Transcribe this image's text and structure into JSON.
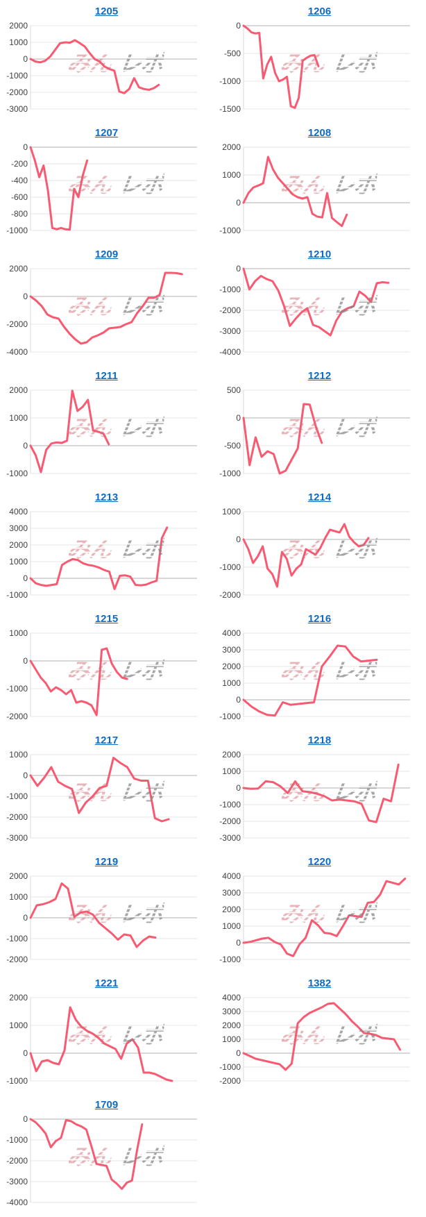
{
  "page": {
    "background": "#ffffff"
  },
  "watermark": {
    "pink": "みん",
    "gray": "レポ"
  },
  "style": {
    "line_color": "#f85a72",
    "link_color": "#0e6bc5",
    "grid_color": "#e6e6e6",
    "zero_color": "#b0b0b0",
    "axis_color": "#d9d9d9",
    "label_color": "#404040"
  },
  "chart_data": [
    {
      "title": "1205",
      "type": "line",
      "ylim": [
        -3000,
        2000
      ],
      "yticks": [
        2000,
        1000,
        0,
        -1000,
        -2000,
        -3000
      ],
      "x_extent": 0.77,
      "values": [
        0,
        -150,
        -200,
        -100,
        150,
        550,
        950,
        1000,
        980,
        1130,
        950,
        750,
        350,
        0,
        -150,
        -450,
        -600,
        -700,
        -1950,
        -2050,
        -1800,
        -1150,
        -1700,
        -1800,
        -1850,
        -1750,
        -1550
      ]
    },
    {
      "title": "1206",
      "type": "line",
      "ylim": [
        -1500,
        0
      ],
      "yticks": [
        0,
        -500,
        -1000,
        -1500
      ],
      "x_extent": 0.45,
      "values": [
        0,
        -50,
        -120,
        -140,
        -130,
        -950,
        -700,
        -560,
        -850,
        -1000,
        -970,
        -920,
        -1450,
        -1480,
        -1300,
        -630,
        -580,
        -540,
        -530,
        -730
      ]
    },
    {
      "title": "1207",
      "type": "line",
      "ylim": [
        -1000,
        0
      ],
      "yticks": [
        0,
        -200,
        -400,
        -600,
        -800,
        -1000
      ],
      "x_extent": 0.34,
      "values": [
        0,
        -160,
        -360,
        -220,
        -520,
        -970,
        -985,
        -970,
        -985,
        -990,
        -500,
        -600,
        -340,
        -160
      ]
    },
    {
      "title": "1208",
      "type": "line",
      "ylim": [
        -1000,
        2000
      ],
      "yticks": [
        2000,
        1000,
        0,
        -1000
      ],
      "x_extent": 0.62,
      "values": [
        0,
        350,
        550,
        620,
        700,
        1650,
        1200,
        900,
        700,
        500,
        300,
        200,
        150,
        200,
        -400,
        -500,
        -530,
        350,
        -550,
        -700,
        -840,
        -430
      ]
    },
    {
      "title": "1209",
      "type": "line",
      "ylim": [
        -4000,
        2000
      ],
      "yticks": [
        2000,
        0,
        -2000,
        -4000
      ],
      "x_extent": 0.91,
      "values": [
        0,
        -300,
        -700,
        -1300,
        -1500,
        -1600,
        -2200,
        -2700,
        -3100,
        -3400,
        -3300,
        -2950,
        -2800,
        -2600,
        -2300,
        -2250,
        -2200,
        -2000,
        -1850,
        -1200,
        -700,
        -100,
        -100,
        100,
        1700,
        1700,
        1680,
        1600
      ]
    },
    {
      "title": "1210",
      "type": "line",
      "ylim": [
        -4000,
        0
      ],
      "yticks": [
        0,
        -1000,
        -2000,
        -3000,
        -4000
      ],
      "x_extent": 0.87,
      "values": [
        0,
        -1000,
        -600,
        -350,
        -500,
        -600,
        -1050,
        -1800,
        -2750,
        -2400,
        -2100,
        -1900,
        -2700,
        -2800,
        -3000,
        -3200,
        -2500,
        -2050,
        -1900,
        -1800,
        -1100,
        -1300,
        -1600,
        -700,
        -650,
        -680
      ]
    },
    {
      "title": "1211",
      "type": "line",
      "ylim": [
        -1000,
        2000
      ],
      "yticks": [
        2000,
        1000,
        0,
        -1000
      ],
      "x_extent": 0.47,
      "values": [
        0,
        -350,
        -950,
        -150,
        80,
        120,
        100,
        180,
        1980,
        1250,
        1400,
        1650,
        550,
        500,
        430,
        50
      ]
    },
    {
      "title": "1212",
      "type": "line",
      "ylim": [
        -1000,
        500
      ],
      "yticks": [
        500,
        0,
        -500,
        -1000
      ],
      "x_extent": 0.47,
      "values": [
        0,
        -850,
        -350,
        -700,
        -600,
        -650,
        -1000,
        -950,
        -750,
        -550,
        250,
        240,
        -150,
        -450
      ]
    },
    {
      "title": "1213",
      "type": "line",
      "ylim": [
        -1000,
        4000
      ],
      "yticks": [
        4000,
        3000,
        2000,
        1000,
        0,
        -1000
      ],
      "x_extent": 0.82,
      "values": [
        0,
        -300,
        -400,
        -450,
        -400,
        -350,
        800,
        1000,
        1150,
        1100,
        900,
        800,
        750,
        650,
        500,
        400,
        -650,
        150,
        180,
        100,
        -400,
        -420,
        -380,
        -250,
        -150,
        2400,
        3050
      ]
    },
    {
      "title": "1214",
      "type": "line",
      "ylim": [
        -2000,
        1000
      ],
      "yticks": [
        1000,
        0,
        -1000,
        -2000
      ],
      "x_extent": 0.75,
      "values": [
        0,
        -350,
        -850,
        -600,
        -250,
        -1050,
        -1250,
        -1700,
        -450,
        -700,
        -1300,
        -1050,
        -900,
        -350,
        -450,
        -550,
        -300,
        50,
        350,
        300,
        250,
        550,
        100,
        -100,
        -250,
        -200,
        50
      ]
    },
    {
      "title": "1215",
      "type": "line",
      "ylim": [
        -2000,
        1000
      ],
      "yticks": [
        1000,
        0,
        -1000,
        -2000
      ],
      "x_extent": 0.58,
      "values": [
        0,
        -300,
        -600,
        -800,
        -1100,
        -950,
        -1050,
        -1200,
        -1050,
        -1500,
        -1450,
        -1500,
        -1600,
        -1950,
        400,
        450,
        -100,
        -400,
        -600,
        -650
      ]
    },
    {
      "title": "1216",
      "type": "line",
      "ylim": [
        -1000,
        4000
      ],
      "yticks": [
        4000,
        3000,
        2000,
        1000,
        0,
        -1000
      ],
      "x_extent": 0.8,
      "values": [
        0,
        -400,
        -700,
        -900,
        -950,
        -150,
        -300,
        -250,
        -200,
        -150,
        2000,
        2600,
        3250,
        3200,
        2600,
        2300,
        2350,
        2400
      ]
    },
    {
      "title": "1217",
      "type": "line",
      "ylim": [
        -3000,
        1000
      ],
      "yticks": [
        1000,
        0,
        -1000,
        -2000,
        -3000
      ],
      "x_extent": 0.83,
      "values": [
        0,
        -500,
        -100,
        400,
        -300,
        -500,
        -650,
        -1800,
        -1300,
        -1000,
        -600,
        -500,
        850,
        600,
        400,
        -150,
        -250,
        -250,
        -2050,
        -2200,
        -2100
      ]
    },
    {
      "title": "1218",
      "type": "line",
      "ylim": [
        -3000,
        2000
      ],
      "yticks": [
        2000,
        1000,
        0,
        -1000,
        -2000,
        -3000
      ],
      "x_extent": 0.93,
      "values": [
        0,
        -50,
        -30,
        400,
        350,
        100,
        -300,
        400,
        -200,
        -250,
        -350,
        -500,
        -750,
        -700,
        -750,
        -800,
        -950,
        -1950,
        -2050,
        -650,
        -800,
        1400
      ]
    },
    {
      "title": "1219",
      "type": "line",
      "ylim": [
        -2000,
        2000
      ],
      "yticks": [
        2000,
        1000,
        0,
        -1000,
        -2000
      ],
      "x_extent": 0.75,
      "values": [
        0,
        600,
        650,
        750,
        900,
        1650,
        1400,
        50,
        250,
        300,
        150,
        -250,
        -500,
        -750,
        -1050,
        -800,
        -850,
        -1400,
        -1100,
        -900,
        -950
      ]
    },
    {
      "title": "1220",
      "type": "line",
      "ylim": [
        -1000,
        4000
      ],
      "yticks": [
        4000,
        3000,
        2000,
        1000,
        0,
        -1000
      ],
      "x_extent": 0.97,
      "values": [
        0,
        50,
        150,
        250,
        300,
        50,
        -100,
        -650,
        -800,
        -100,
        300,
        1350,
        1050,
        600,
        550,
        400,
        1000,
        1650,
        1600,
        1550,
        2400,
        2450,
        2900,
        3700,
        3600,
        3500,
        3850
      ]
    },
    {
      "title": "1221",
      "type": "line",
      "ylim": [
        -1000,
        2000
      ],
      "yticks": [
        2000,
        1000,
        0,
        -1000
      ],
      "x_extent": 0.85,
      "values": [
        0,
        -650,
        -300,
        -250,
        -350,
        -400,
        100,
        1650,
        1200,
        950,
        800,
        700,
        550,
        350,
        250,
        150,
        -200,
        350,
        500,
        200,
        -700,
        -700,
        -750,
        -850,
        -950,
        -1000
      ]
    },
    {
      "title": "1382",
      "type": "line",
      "ylim": [
        -2000,
        4000
      ],
      "yticks": [
        4000,
        3000,
        2000,
        1000,
        0,
        -1000,
        -2000
      ],
      "x_extent": 0.94,
      "values": [
        0,
        -200,
        -400,
        -500,
        -600,
        -700,
        -800,
        -1200,
        -750,
        2150,
        2600,
        2900,
        3100,
        3300,
        3550,
        3600,
        3200,
        2800,
        2300,
        1900,
        1450,
        1400,
        1300,
        1100,
        1050,
        1000,
        250
      ]
    },
    {
      "title": "1709",
      "type": "line",
      "ylim": [
        -4000,
        0
      ],
      "yticks": [
        0,
        -1000,
        -2000,
        -3000,
        -4000
      ],
      "x_extent": 0.67,
      "values": [
        0,
        -150,
        -400,
        -700,
        -1350,
        -1050,
        -900,
        -50,
        -100,
        -250,
        -350,
        -500,
        -1300,
        -2150,
        -2200,
        -2250,
        -2900,
        -3100,
        -3350,
        -3050,
        -2950,
        -1500,
        -250
      ]
    }
  ]
}
